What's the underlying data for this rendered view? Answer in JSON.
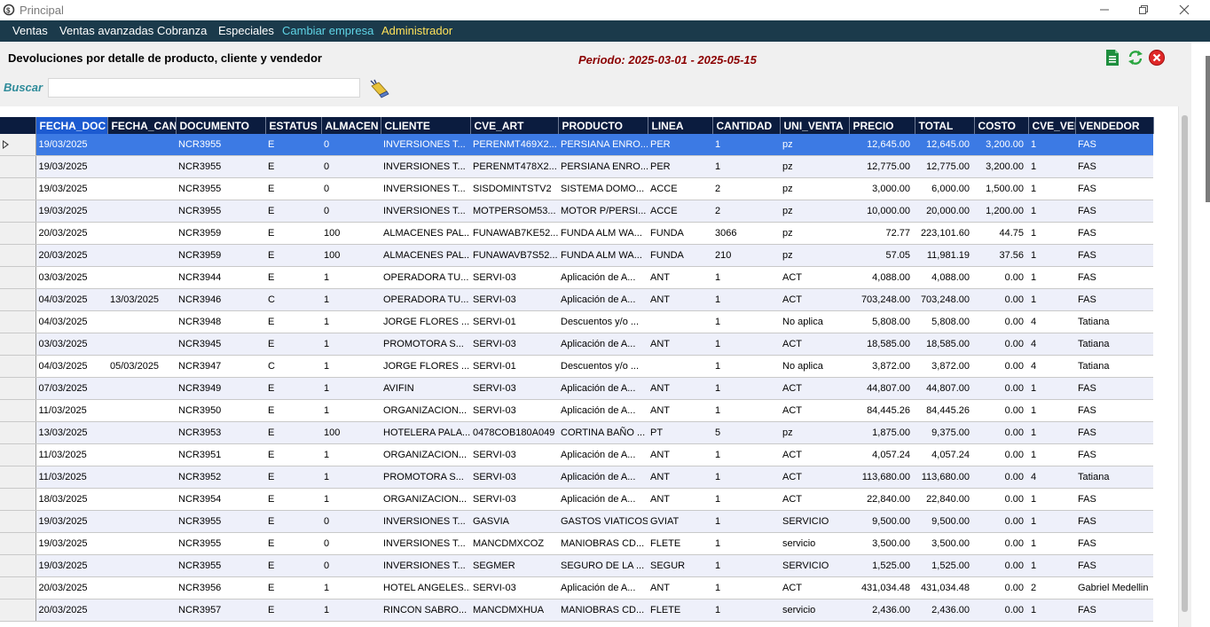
{
  "window": {
    "title": "Principal"
  },
  "menu": {
    "items": [
      {
        "label": "Ventas",
        "color": "#ffffff"
      },
      {
        "label": "Ventas avanzadas",
        "color": "#ffffff"
      },
      {
        "label": "Cobranza",
        "color": "#ffffff"
      },
      {
        "label": "Especiales",
        "color": "#ffffff"
      },
      {
        "label": "Cambiar empresa",
        "color": "#5fd4e6"
      },
      {
        "label": "Administrador",
        "color": "#ffe15a"
      }
    ]
  },
  "report": {
    "title": "Devoluciones por detalle de producto, cliente y vendedor",
    "period": "Periodo: 2025-03-01 - 2025-05-15"
  },
  "search": {
    "label": "Buscar",
    "value": "",
    "placeholder": ""
  },
  "toolbar": {
    "icons": [
      "excel-export-icon",
      "refresh-icon",
      "close-icon"
    ]
  },
  "grid": {
    "columns": [
      "FECHA_DOC",
      "FECHA_CAN",
      "DOCUMENTO",
      "ESTATUS",
      "ALMACEN",
      "CLIENTE",
      "CVE_ART",
      "PRODUCTO",
      "LINEA",
      "CANTIDAD",
      "UNI_VENTA",
      "PRECIO",
      "TOTAL",
      "COSTO",
      "CVE_VEI",
      "VENDEDOR"
    ],
    "rows": [
      [
        "19/03/2025",
        "",
        "NCR3955",
        "E",
        "0",
        "INVERSIONES T...",
        "PERENMT469X2...",
        "PERSIANA ENRO...",
        "PER",
        "1",
        "pz",
        "12,645.00",
        "12,645.00",
        "3,200.00",
        "1",
        "FAS"
      ],
      [
        "19/03/2025",
        "",
        "NCR3955",
        "E",
        "0",
        "INVERSIONES T...",
        "PERENMT478X2...",
        "PERSIANA ENRO...",
        "PER",
        "1",
        "pz",
        "12,775.00",
        "12,775.00",
        "3,200.00",
        "1",
        "FAS"
      ],
      [
        "19/03/2025",
        "",
        "NCR3955",
        "E",
        "0",
        "INVERSIONES T...",
        "SISDOMINTSTV2",
        "SISTEMA DOMO...",
        "ACCE",
        "2",
        "pz",
        "3,000.00",
        "6,000.00",
        "1,500.00",
        "1",
        "FAS"
      ],
      [
        "19/03/2025",
        "",
        "NCR3955",
        "E",
        "0",
        "INVERSIONES T...",
        "MOTPERSOM53...",
        "MOTOR P/PERSI...",
        "ACCE",
        "2",
        "pz",
        "10,000.00",
        "20,000.00",
        "1,200.00",
        "1",
        "FAS"
      ],
      [
        "20/03/2025",
        "",
        "NCR3959",
        "E",
        "100",
        "ALMACENES PAL...",
        "FUNAWAB7KE52...",
        "FUNDA ALM WA...",
        "FUNDA",
        "3066",
        "pz",
        "72.77",
        "223,101.60",
        "44.75",
        "1",
        "FAS"
      ],
      [
        "20/03/2025",
        "",
        "NCR3959",
        "E",
        "100",
        "ALMACENES PAL...",
        "FUNAWAVB7S52...",
        "FUNDA ALM WA...",
        "FUNDA",
        "210",
        "pz",
        "57.05",
        "11,981.19",
        "37.56",
        "1",
        "FAS"
      ],
      [
        "03/03/2025",
        "",
        "NCR3944",
        "E",
        "1",
        "OPERADORA TU...",
        "SERVI-03",
        "Aplicación de A...",
        "ANT",
        "1",
        "ACT",
        "4,088.00",
        "4,088.00",
        "0.00",
        "1",
        "FAS"
      ],
      [
        "04/03/2025",
        "13/03/2025",
        "NCR3946",
        "C",
        "1",
        "OPERADORA TU...",
        "SERVI-03",
        "Aplicación de A...",
        "ANT",
        "1",
        "ACT",
        "703,248.00",
        "703,248.00",
        "0.00",
        "1",
        "FAS"
      ],
      [
        "04/03/2025",
        "",
        "NCR3948",
        "E",
        "1",
        "JORGE FLORES ...",
        "SERVI-01",
        "Descuentos y/o ...",
        "",
        "1",
        "No aplica",
        "5,808.00",
        "5,808.00",
        "0.00",
        "4",
        "Tatiana"
      ],
      [
        "03/03/2025",
        "",
        "NCR3945",
        "E",
        "1",
        "PROMOTORA S...",
        "SERVI-03",
        "Aplicación de A...",
        "ANT",
        "1",
        "ACT",
        "18,585.00",
        "18,585.00",
        "0.00",
        "4",
        "Tatiana"
      ],
      [
        "04/03/2025",
        "05/03/2025",
        "NCR3947",
        "C",
        "1",
        "JORGE FLORES ...",
        "SERVI-01",
        "Descuentos y/o ...",
        "",
        "1",
        "No aplica",
        "3,872.00",
        "3,872.00",
        "0.00",
        "4",
        "Tatiana"
      ],
      [
        "07/03/2025",
        "",
        "NCR3949",
        "E",
        "1",
        "AVIFIN",
        "SERVI-03",
        "Aplicación de A...",
        "ANT",
        "1",
        "ACT",
        "44,807.00",
        "44,807.00",
        "0.00",
        "1",
        "FAS"
      ],
      [
        "11/03/2025",
        "",
        "NCR3950",
        "E",
        "1",
        "ORGANIZACION...",
        "SERVI-03",
        "Aplicación de A...",
        "ANT",
        "1",
        "ACT",
        "84,445.26",
        "84,445.26",
        "0.00",
        "1",
        "FAS"
      ],
      [
        "13/03/2025",
        "",
        "NCR3953",
        "E",
        "100",
        "HOTELERA PALA...",
        "0478COB180A049",
        "CORTINA BAÑO ...",
        "PT",
        "5",
        "pz",
        "1,875.00",
        "9,375.00",
        "0.00",
        "1",
        "FAS"
      ],
      [
        "11/03/2025",
        "",
        "NCR3951",
        "E",
        "1",
        "ORGANIZACION...",
        "SERVI-03",
        "Aplicación de A...",
        "ANT",
        "1",
        "ACT",
        "4,057.24",
        "4,057.24",
        "0.00",
        "1",
        "FAS"
      ],
      [
        "11/03/2025",
        "",
        "NCR3952",
        "E",
        "1",
        "PROMOTORA S...",
        "SERVI-03",
        "Aplicación de A...",
        "ANT",
        "1",
        "ACT",
        "113,680.00",
        "113,680.00",
        "0.00",
        "4",
        "Tatiana"
      ],
      [
        "18/03/2025",
        "",
        "NCR3954",
        "E",
        "1",
        "ORGANIZACION...",
        "SERVI-03",
        "Aplicación de A...",
        "ANT",
        "1",
        "ACT",
        "22,840.00",
        "22,840.00",
        "0.00",
        "1",
        "FAS"
      ],
      [
        "19/03/2025",
        "",
        "NCR3955",
        "E",
        "0",
        "INVERSIONES T...",
        "GASVIA",
        "GASTOS VIATICOS",
        "GVIAT",
        "1",
        "SERVICIO",
        "9,500.00",
        "9,500.00",
        "0.00",
        "1",
        "FAS"
      ],
      [
        "19/03/2025",
        "",
        "NCR3955",
        "E",
        "0",
        "INVERSIONES T...",
        "MANCDMXCOZ",
        "MANIOBRAS CD...",
        "FLETE",
        "1",
        "servicio",
        "3,500.00",
        "3,500.00",
        "0.00",
        "1",
        "FAS"
      ],
      [
        "19/03/2025",
        "",
        "NCR3955",
        "E",
        "0",
        "INVERSIONES T...",
        "SEGMER",
        "SEGURO DE LA ...",
        "SEGUR",
        "1",
        "SERVICIO",
        "1,525.00",
        "1,525.00",
        "0.00",
        "1",
        "FAS"
      ],
      [
        "20/03/2025",
        "",
        "NCR3956",
        "E",
        "1",
        "HOTEL ANGELES...",
        "SERVI-03",
        "Aplicación de A...",
        "ANT",
        "1",
        "ACT",
        "431,034.48",
        "431,034.48",
        "0.00",
        "2",
        "Gabriel Medellin"
      ],
      [
        "20/03/2025",
        "",
        "NCR3957",
        "E",
        "1",
        "RINCON SABRO...",
        "MANCDMXHUA",
        "MANIOBRAS CD...",
        "FLETE",
        "1",
        "servicio",
        "2,436.00",
        "2,436.00",
        "0.00",
        "1",
        "FAS"
      ]
    ],
    "selected_row": 0
  },
  "colors": {
    "menubar": "#1b3a4b",
    "header": "#0b1c3f",
    "header_highlight": "#1c5ad0",
    "selected_row": "#3c7ae4",
    "alt_row": "#eef0fa",
    "period_text": "#8b0000",
    "search_label": "#2e8b9a"
  }
}
